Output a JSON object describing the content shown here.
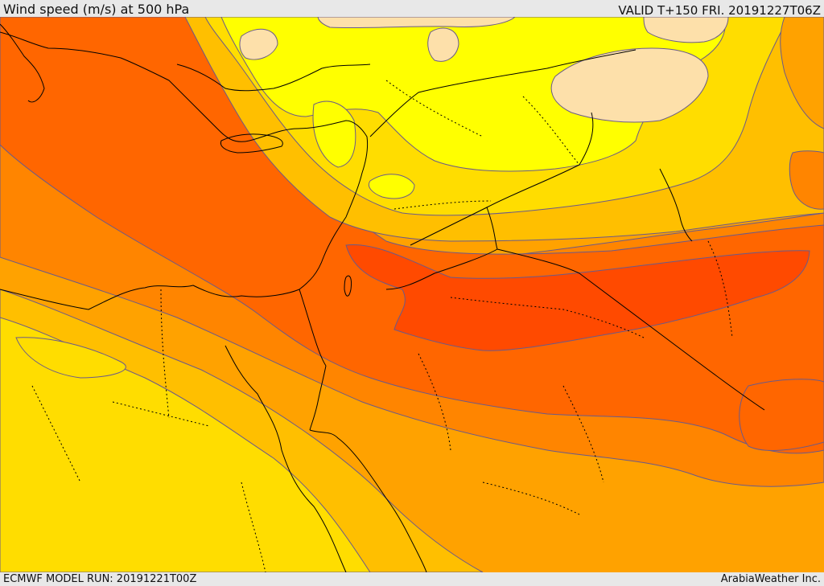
{
  "header": {
    "title": "Wind speed (m/s) at 500 hPa",
    "valid": "VALID T+150 FRI. 20191227T06Z"
  },
  "footer": {
    "model_run": "ECMWF MODEL RUN: 20191221T00Z",
    "credit": "ArabiaWeather Inc."
  },
  "map": {
    "region": "Eastern Mediterranean and Middle East",
    "colors": {
      "band_0": "#fde0aa",
      "band_1": "#ffff00",
      "band_2": "#ffdd00",
      "band_3": "#ffbf00",
      "band_4": "#ffa200",
      "band_5": "#ff8500",
      "band_6": "#ff6600",
      "band_7": "#ff4a00",
      "contour": "#6a5a8a",
      "coast": "#000000",
      "border": "#000000"
    }
  }
}
